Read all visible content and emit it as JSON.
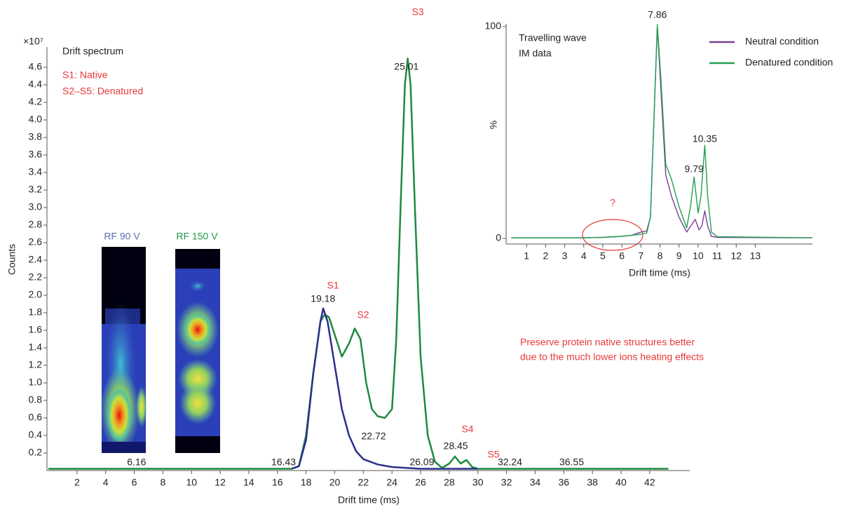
{
  "chart_data": [
    {
      "type": "line",
      "title": "Drift spectrum",
      "annotations": [
        "S1: Native",
        "S2–S5: Denatured"
      ],
      "note": [
        "Preserve protein native structures better",
        "due to the much lower ions heating effects"
      ],
      "heatmap_labels": [
        "RF 90 V",
        "RF 150 V"
      ],
      "peak_names": [
        "S1",
        "S2",
        "S3",
        "S4",
        "S5"
      ],
      "x_label": "Drift time (ms)",
      "y_label": "Counts",
      "y_multiplier": "×10⁷",
      "xlim": [
        0,
        44.8
      ],
      "xticks": [
        2,
        4,
        6,
        8,
        10,
        12,
        14,
        16,
        18,
        20,
        22,
        24,
        26,
        28,
        30,
        32,
        34,
        36,
        38,
        40,
        42
      ],
      "ylim": [
        0,
        4.8
      ],
      "yticks": [
        0.2,
        0.4,
        0.6,
        0.8,
        {
          "value": 1,
          "label": "1.0"
        },
        1.2,
        1.4,
        1.6,
        1.8,
        {
          "value": 2,
          "label": "2.0"
        },
        2.2,
        2.4,
        2.6,
        2.8,
        {
          "value": 3,
          "label": "3.0"
        },
        3.2,
        3.4,
        3.6,
        3.8,
        {
          "value": 4,
          "label": "4.0"
        },
        4.2,
        4.4,
        4.6
      ],
      "series": [
        {
          "color": "#1e8a3f",
          "x": [
            0,
            17,
            17.5,
            18,
            18.5,
            19,
            19.3,
            19.6,
            20,
            20.5,
            21,
            21.4,
            21.8,
            22.2,
            22.6,
            23,
            23.5,
            24,
            24.3,
            24.6,
            24.9,
            25.1,
            25.3,
            25.6,
            26,
            26.5,
            27,
            27.5,
            28,
            28.4,
            28.8,
            29.2,
            29.6,
            30,
            43.3
          ],
          "values": [
            0.02,
            0.02,
            0.05,
            0.4,
            1.1,
            1.7,
            1.78,
            1.75,
            1.55,
            1.3,
            1.45,
            1.62,
            1.5,
            1.0,
            0.7,
            0.62,
            0.6,
            0.7,
            1.5,
            3.0,
            4.4,
            4.7,
            4.4,
            3.0,
            1.3,
            0.4,
            0.1,
            0.03,
            0.08,
            0.16,
            0.08,
            0.12,
            0.04,
            0.02,
            0.02
          ],
          "peaks": [
            16.43,
            25.01,
            28.45,
            32.24,
            36.55
          ]
        },
        {
          "color": "#2b2e8c",
          "x": [
            17,
            17.5,
            18,
            18.5,
            19,
            19.2,
            19.5,
            20,
            20.5,
            21,
            21.5,
            22,
            23,
            24,
            26,
            30
          ],
          "values": [
            0.02,
            0.05,
            0.35,
            1.1,
            1.7,
            1.85,
            1.7,
            1.2,
            0.7,
            0.4,
            0.22,
            0.13,
            0.07,
            0.04,
            0.02,
            0.02
          ],
          "peaks": [
            6.16,
            19.18,
            22.72,
            26.09
          ]
        }
      ]
    },
    {
      "type": "line",
      "title": [
        "Travelling wave",
        "IM data"
      ],
      "annotations": [
        "?"
      ],
      "x_label": "Drift time (ms)",
      "y_label": "%",
      "xlim": [
        0,
        16
      ],
      "xticks": [
        1,
        2,
        3,
        4,
        5,
        6,
        7,
        8,
        9,
        10,
        11,
        12,
        13
      ],
      "ylim": [
        0,
        100
      ],
      "yticks": [
        0,
        100
      ],
      "legend": "top-right",
      "series": [
        {
          "name": "Neutral condition",
          "color": "#7b3f96",
          "x": [
            0.2,
            4,
            5,
            6,
            6.5,
            7,
            7.3,
            7.5,
            7.7,
            7.86,
            8.05,
            8.3,
            8.6,
            9,
            9.4,
            9.7,
            9.85,
            10.05,
            10.2,
            10.35,
            10.5,
            10.7,
            11,
            16
          ],
          "values": [
            0.3,
            0.3,
            0.5,
            1,
            1.5,
            3,
            3.5,
            10,
            60,
            100,
            70,
            30,
            20,
            10,
            3,
            7,
            9,
            4,
            6,
            13,
            6,
            1,
            0.5,
            0.3
          ]
        },
        {
          "name": "Denatured condition",
          "color": "#20a050",
          "x": [
            0.2,
            4,
            5,
            6,
            6.5,
            7,
            7.3,
            7.5,
            7.7,
            7.86,
            8.05,
            8.3,
            8.6,
            9,
            9.4,
            9.6,
            9.79,
            10.0,
            10.15,
            10.35,
            10.5,
            10.7,
            11,
            16
          ],
          "values": [
            0.3,
            0.3,
            0.5,
            1,
            1.5,
            2,
            2.5,
            10,
            60,
            101,
            75,
            35,
            28,
            15,
            5,
            15,
            29,
            12,
            20,
            44,
            20,
            3,
            0.8,
            0.3
          ],
          "peaks": [
            7.86,
            9.79,
            10.35
          ]
        }
      ]
    }
  ]
}
